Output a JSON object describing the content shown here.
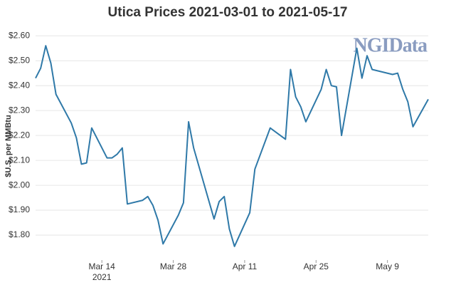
{
  "chart_data": {
    "type": "line",
    "title": "Utica Prices 2021-03-01 to 2021-05-17",
    "y_label": "$U.S. per MMBtu",
    "watermark": "NGIData",
    "grid": true,
    "x": [
      "2021-03-01",
      "2021-03-02",
      "2021-03-03",
      "2021-03-04",
      "2021-03-05",
      "2021-03-08",
      "2021-03-09",
      "2021-03-10",
      "2021-03-11",
      "2021-03-12",
      "2021-03-15",
      "2021-03-16",
      "2021-03-17",
      "2021-03-18",
      "2021-03-19",
      "2021-03-22",
      "2021-03-23",
      "2021-03-24",
      "2021-03-25",
      "2021-03-26",
      "2021-03-29",
      "2021-03-30",
      "2021-03-31",
      "2021-04-01",
      "2021-04-05",
      "2021-04-06",
      "2021-04-07",
      "2021-04-08",
      "2021-04-09",
      "2021-04-12",
      "2021-04-13",
      "2021-04-16",
      "2021-04-19",
      "2021-04-20",
      "2021-04-21",
      "2021-04-22",
      "2021-04-23",
      "2021-04-26",
      "2021-04-27",
      "2021-04-28",
      "2021-04-29",
      "2021-04-30",
      "2021-05-03",
      "2021-05-04",
      "2021-05-05",
      "2021-05-06",
      "2021-05-10",
      "2021-05-11",
      "2021-05-12",
      "2021-05-13",
      "2021-05-14",
      "2021-05-17"
    ],
    "series": [
      {
        "name": "Utica",
        "color": "#2f79a8",
        "values": [
          2.43,
          2.47,
          2.56,
          2.49,
          2.365,
          2.25,
          2.19,
          2.085,
          2.09,
          2.23,
          2.11,
          2.11,
          2.125,
          2.15,
          1.925,
          1.94,
          1.955,
          1.92,
          1.86,
          1.765,
          1.88,
          1.93,
          2.255,
          2.15,
          1.865,
          1.935,
          1.955,
          1.825,
          1.755,
          1.89,
          2.065,
          2.23,
          2.185,
          2.465,
          2.355,
          2.315,
          2.255,
          2.385,
          2.465,
          2.4,
          2.395,
          2.2,
          2.55,
          2.43,
          2.52,
          2.465,
          2.445,
          2.45,
          2.385,
          2.335,
          2.235,
          2.345
        ]
      }
    ],
    "xlim": [
      "2021-03-01",
      "2021-05-17"
    ],
    "xticks": [
      {
        "value": "2021-03-14",
        "label": "Mar 14",
        "sublabel": "2021"
      },
      {
        "value": "2021-03-28",
        "label": "Mar 28"
      },
      {
        "value": "2021-04-11",
        "label": "Apr 11"
      },
      {
        "value": "2021-04-25",
        "label": "Apr 25"
      },
      {
        "value": "2021-05-09",
        "label": "May 9"
      }
    ],
    "ylim": [
      1.7,
      2.615
    ],
    "yticks": [
      {
        "value": 1.8,
        "label": "$1.80"
      },
      {
        "value": 1.9,
        "label": "$1.90"
      },
      {
        "value": 2.0,
        "label": "$2.00"
      },
      {
        "value": 2.1,
        "label": "$2.10"
      },
      {
        "value": 2.2,
        "label": "$2.20"
      },
      {
        "value": 2.3,
        "label": "$2.30"
      },
      {
        "value": 2.4,
        "label": "$2.40"
      },
      {
        "value": 2.5,
        "label": "$2.50"
      },
      {
        "value": 2.6,
        "label": "$2.60"
      }
    ]
  }
}
